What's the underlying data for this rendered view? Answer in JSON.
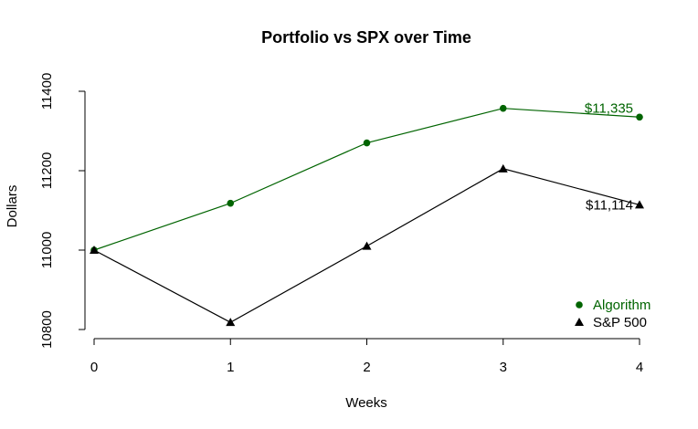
{
  "chart_data": {
    "type": "line",
    "title": "Portfolio vs SPX over Time",
    "xlabel": "Weeks",
    "ylabel": "Dollars",
    "x": [
      0,
      1,
      2,
      3,
      4
    ],
    "x_ticks": [
      0,
      1,
      2,
      3,
      4
    ],
    "y_ticks": [
      10800,
      11000,
      11200,
      11400
    ],
    "xlim": [
      0,
      4
    ],
    "ylim": [
      10800,
      11400
    ],
    "grid": false,
    "legend_position": "bottom-right",
    "series": [
      {
        "name": "Algorithm",
        "values": [
          11000,
          11118,
          11270,
          11357,
          11335
        ],
        "color": "#006400",
        "marker": "circle",
        "end_label": "$11,335"
      },
      {
        "name": "S&P 500",
        "values": [
          11000,
          10818,
          11010,
          11205,
          11114
        ],
        "color": "#000000",
        "marker": "triangle",
        "end_label": "$11,114"
      }
    ]
  }
}
